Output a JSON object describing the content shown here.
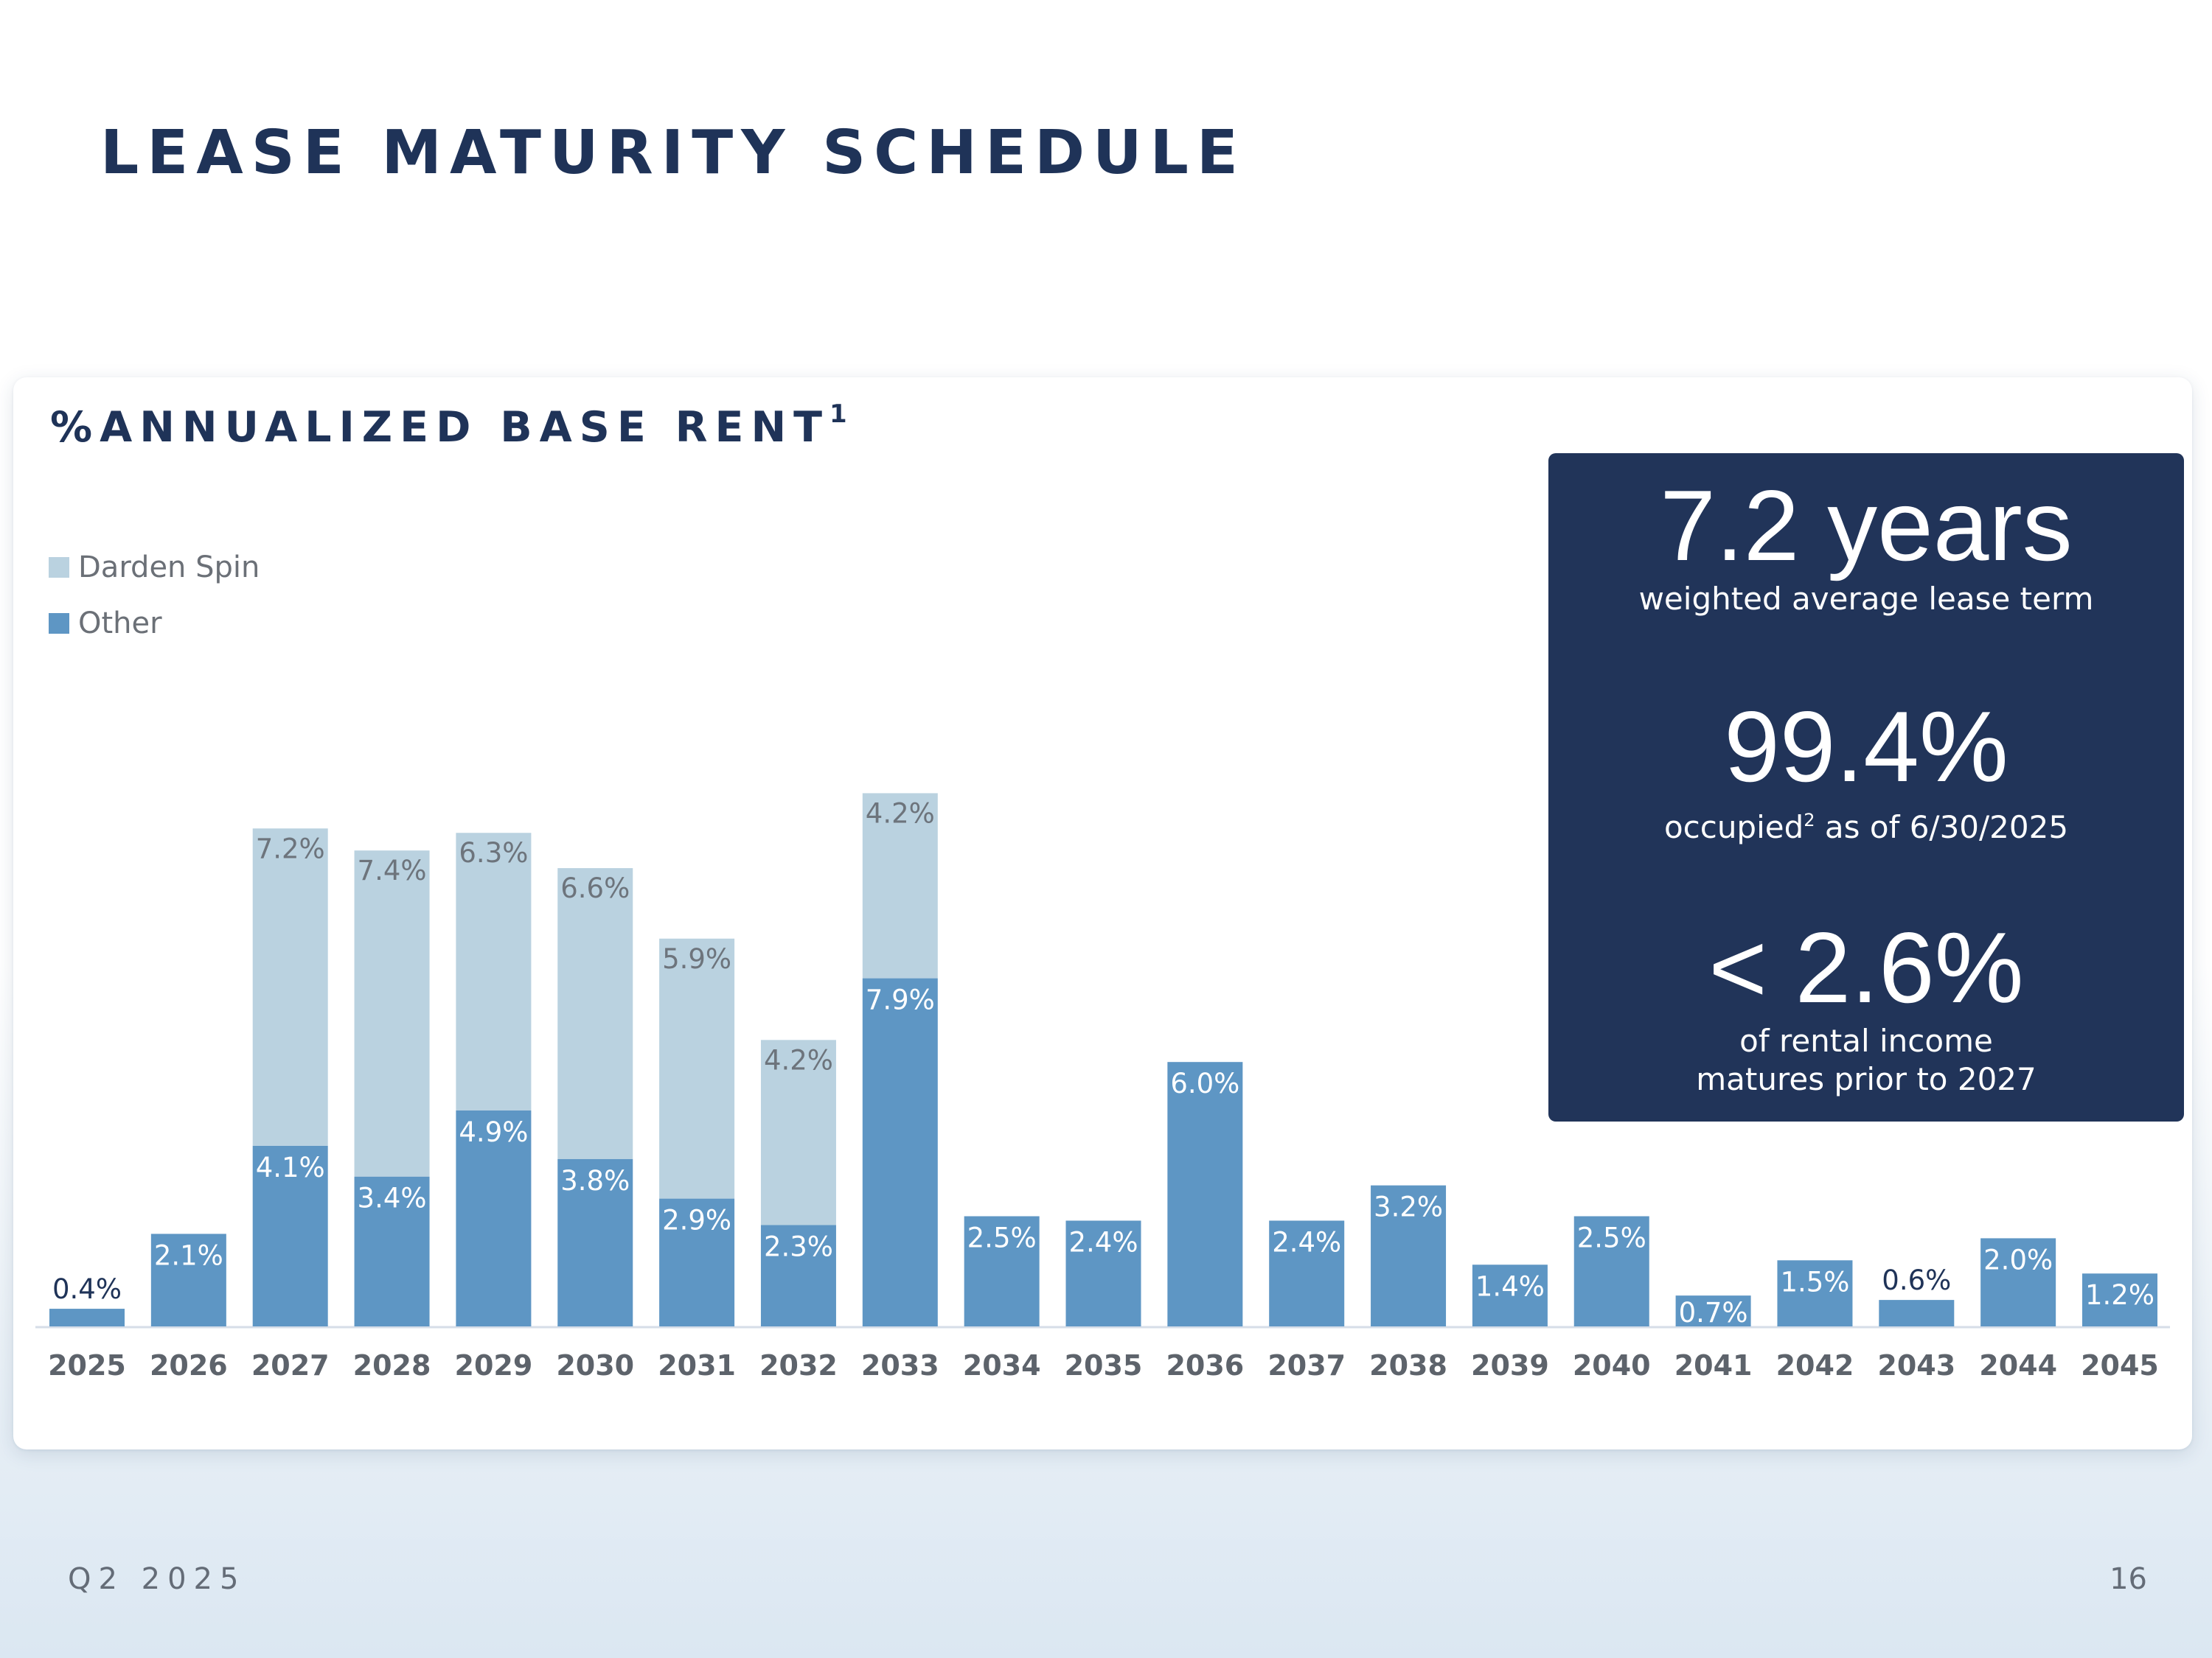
{
  "page": {
    "title": "LEASE MATURITY SCHEDULE",
    "footer_left": "Q2 2025",
    "page_number": "16"
  },
  "stats": [
    {
      "value": "7.2 years",
      "label": "weighted average lease term"
    },
    {
      "value": "99.4%",
      "label_pre": "occupied",
      "label_sup": "2",
      "label_post": " as of 6/30/2025"
    },
    {
      "value": "< 2.6%",
      "label": "of rental income\nmatures prior to 2027"
    }
  ],
  "colors": {
    "navy": "#1f3358",
    "other": "#5e96c4",
    "darden": "#bad2e0",
    "axis": "#d6dde8"
  },
  "chart_data": {
    "type": "bar",
    "stacked": true,
    "title": "%ANNUALIZED BASE RENT",
    "title_sup": "1",
    "categories": [
      "2025",
      "2026",
      "2027",
      "2028",
      "2029",
      "2030",
      "2031",
      "2032",
      "2033",
      "2034",
      "2035",
      "2036",
      "2037",
      "2038",
      "2039",
      "2040",
      "2041",
      "2042",
      "2043",
      "2044",
      "2045"
    ],
    "series": [
      {
        "name": "Other",
        "color": "#5e96c4",
        "values": [
          0.4,
          2.1,
          4.1,
          3.4,
          4.9,
          3.8,
          2.9,
          2.3,
          7.9,
          2.5,
          2.4,
          6.0,
          2.4,
          3.2,
          1.4,
          2.5,
          0.7,
          1.5,
          0.6,
          2.0,
          1.2
        ],
        "labels": [
          "0.4%",
          "2.1%",
          "4.1%",
          "3.4%",
          "4.9%",
          "3.8%",
          "2.9%",
          "2.3%",
          "7.9%",
          "2.5%",
          "2.4%",
          "6.0%",
          "2.4%",
          "3.2%",
          "1.4%",
          "2.5%",
          "0.7%",
          "1.5%",
          "0.6%",
          "2.0%",
          "1.2%"
        ]
      },
      {
        "name": "Darden Spin",
        "color": "#bad2e0",
        "values": [
          0,
          0,
          7.2,
          7.4,
          6.3,
          6.6,
          5.9,
          4.2,
          4.2,
          0,
          0,
          0,
          0,
          0,
          0,
          0,
          0,
          0,
          0,
          0,
          0
        ],
        "labels": [
          "",
          "",
          "7.2%",
          "7.4%",
          "6.3%",
          "6.6%",
          "5.9%",
          "4.2%",
          "4.2%",
          "",
          "",
          "",
          "",
          "",
          "",
          "",
          "",
          "",
          "",
          "",
          ""
        ]
      }
    ],
    "legend": [
      "Darden Spin",
      "Other"
    ],
    "legend_position": "top-left",
    "ylim": [
      0,
      12.5
    ],
    "grid": false
  }
}
